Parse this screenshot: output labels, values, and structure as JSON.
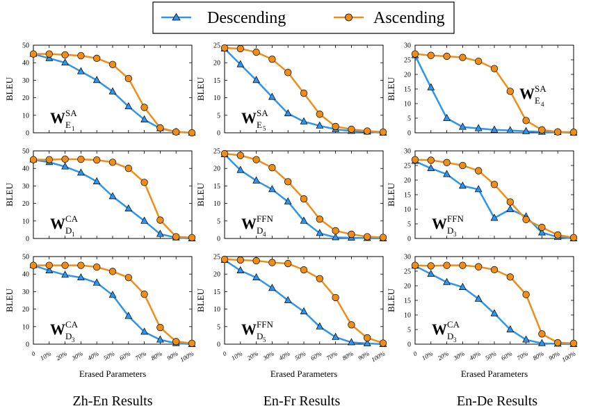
{
  "legend": {
    "descending_label": "Descending",
    "ascending_label": "Ascending",
    "descending_color": "#2b95ef",
    "ascending_color": "#f08d17"
  },
  "column_titles": [
    "Zh-En Results",
    "En-Fr Results",
    "En-De Results"
  ],
  "chart_data": [
    {
      "type": "line",
      "title": "Zh-En W_E1^SA",
      "panel_label": {
        "main": "W",
        "sup": "SA",
        "sub": "E",
        "subsub": "1"
      },
      "xlabel": "",
      "ylabel": "BLEU",
      "ylim": [
        0,
        50
      ],
      "yticks": [
        0,
        10,
        20,
        30,
        40,
        50
      ],
      "categories": [
        "0",
        "10%",
        "20%",
        "30%",
        "40%",
        "50%",
        "60%",
        "70%",
        "80%",
        "90%",
        "100%"
      ],
      "series": [
        {
          "name": "Descending",
          "values": [
            45,
            42.5,
            40,
            35,
            30,
            23.5,
            15,
            7.5,
            2.5,
            0.5,
            0
          ]
        },
        {
          "name": "Ascending",
          "values": [
            45,
            45,
            44.5,
            44,
            42.5,
            39,
            31,
            14.5,
            2.8,
            0.5,
            0
          ]
        }
      ]
    },
    {
      "type": "line",
      "title": "En-Fr W_E5^SA",
      "panel_label": {
        "main": "W",
        "sup": "SA",
        "sub": "E",
        "subsub": "5"
      },
      "xlabel": "",
      "ylabel": "BLEU",
      "ylim": [
        0,
        25
      ],
      "yticks": [
        0,
        5,
        10,
        15,
        20,
        25
      ],
      "categories": [
        "0",
        "10%",
        "20%",
        "30%",
        "40%",
        "50%",
        "60%",
        "70%",
        "80%",
        "90%",
        "100%"
      ],
      "series": [
        {
          "name": "Descending",
          "values": [
            24,
            19.5,
            15,
            10.2,
            5.5,
            3.2,
            2,
            1,
            0.5,
            0.3,
            0
          ]
        },
        {
          "name": "Ascending",
          "values": [
            24.2,
            24,
            23,
            21,
            17.2,
            11.3,
            5.3,
            1.8,
            1,
            0.5,
            0.2
          ]
        }
      ]
    },
    {
      "type": "line",
      "title": "En-De W_E4^SA",
      "panel_label": {
        "main": "W",
        "sup": "SA",
        "sub": "E",
        "subsub": "4"
      },
      "xlabel": "",
      "ylabel": "BLEU",
      "ylim": [
        0,
        30
      ],
      "yticks": [
        0,
        5,
        10,
        15,
        20,
        25,
        30
      ],
      "categories": [
        "0",
        "10%",
        "20%",
        "30%",
        "40%",
        "50%",
        "60%",
        "70%",
        "80%",
        "90%",
        "100%"
      ],
      "series": [
        {
          "name": "Descending",
          "values": [
            26.5,
            15.5,
            5,
            2,
            1.5,
            1,
            0.8,
            0.5,
            0.3,
            0.2,
            0
          ]
        },
        {
          "name": "Ascending",
          "values": [
            27,
            26.5,
            26.2,
            25.8,
            24.5,
            22,
            14.2,
            4.2,
            1,
            0.3,
            0.2
          ]
        }
      ]
    },
    {
      "type": "line",
      "title": "Zh-En W_D1^CA",
      "panel_label": {
        "main": "W",
        "sup": "CA",
        "sub": "D",
        "subsub": "1"
      },
      "xlabel": "",
      "ylabel": "BLEU",
      "ylim": [
        0,
        50
      ],
      "yticks": [
        0,
        10,
        20,
        30,
        40,
        50
      ],
      "categories": [
        "0",
        "10%",
        "20%",
        "30%",
        "40%",
        "50%",
        "60%",
        "70%",
        "80%",
        "90%",
        "100%"
      ],
      "series": [
        {
          "name": "Descending",
          "values": [
            45,
            43.5,
            41,
            37.5,
            32.5,
            24,
            17,
            10,
            2.5,
            0.5,
            0
          ]
        },
        {
          "name": "Ascending",
          "values": [
            45,
            45,
            45.3,
            45.2,
            44.8,
            43.5,
            40,
            32,
            10.5,
            1,
            0.5
          ]
        }
      ]
    },
    {
      "type": "line",
      "title": "En-Fr W_D4^FFN",
      "panel_label": {
        "main": "W",
        "sup": "FFN",
        "sub": "D",
        "subsub": "4"
      },
      "xlabel": "",
      "ylabel": "BLEU",
      "ylim": [
        0,
        25
      ],
      "yticks": [
        0,
        5,
        10,
        15,
        20,
        25
      ],
      "categories": [
        "0",
        "10%",
        "20%",
        "30%",
        "40%",
        "50%",
        "60%",
        "70%",
        "80%",
        "90%",
        "100%"
      ],
      "series": [
        {
          "name": "Descending",
          "values": [
            24,
            19.5,
            16.5,
            14,
            10.5,
            5,
            1.5,
            0.3,
            0.2,
            0.1,
            0
          ]
        },
        {
          "name": "Ascending",
          "values": [
            24.2,
            23.7,
            22.5,
            20.2,
            16.2,
            11.3,
            5.5,
            2.2,
            1.2,
            0.5,
            0.3
          ]
        }
      ]
    },
    {
      "type": "line",
      "title": "En-De W_D3^FFN",
      "panel_label": {
        "main": "W",
        "sup": "FFN",
        "sub": "D",
        "subsub": "3"
      },
      "xlabel": "",
      "ylabel": "BLEU",
      "ylim": [
        0,
        30
      ],
      "yticks": [
        0,
        5,
        10,
        15,
        20,
        25,
        30
      ],
      "categories": [
        "0",
        "10%",
        "20%",
        "30%",
        "40%",
        "50%",
        "60%",
        "70%",
        "80%",
        "90%",
        "100%"
      ],
      "series": [
        {
          "name": "Descending",
          "values": [
            26.5,
            24,
            22,
            18,
            16.8,
            7,
            10,
            7.5,
            2,
            0.5,
            0
          ]
        },
        {
          "name": "Ascending",
          "values": [
            27,
            26.8,
            26,
            25,
            23.2,
            18.5,
            12.5,
            6.5,
            3.8,
            1.2,
            0.3
          ]
        }
      ]
    },
    {
      "type": "line",
      "title": "Zh-En W_D3^CA",
      "panel_label": {
        "main": "W",
        "sup": "CA",
        "sub": "D",
        "subsub": "3"
      },
      "xlabel": "Erased Parameters",
      "ylabel": "BLEU",
      "ylim": [
        0,
        50
      ],
      "yticks": [
        0,
        10,
        20,
        30,
        40,
        50
      ],
      "categories": [
        "0",
        "10%",
        "20%",
        "30%",
        "40%",
        "50%",
        "60%",
        "70%",
        "80%",
        "90%",
        "100%"
      ],
      "series": [
        {
          "name": "Descending",
          "values": [
            45,
            42,
            39.5,
            38,
            35,
            28,
            16,
            7,
            2.5,
            0.5,
            0
          ]
        },
        {
          "name": "Ascending",
          "values": [
            45,
            45,
            45,
            45,
            44,
            41.5,
            38,
            28.5,
            9.5,
            1.5,
            0.5
          ]
        }
      ]
    },
    {
      "type": "line",
      "title": "En-Fr W_D5^FFN",
      "panel_label": {
        "main": "W",
        "sup": "FFN",
        "sub": "D",
        "subsub": "5"
      },
      "xlabel": "Erased Parameters",
      "ylabel": "BLEU",
      "ylim": [
        0,
        25
      ],
      "yticks": [
        0,
        5,
        10,
        15,
        20,
        25
      ],
      "categories": [
        "0",
        "10%",
        "20%",
        "30%",
        "40%",
        "50%",
        "60%",
        "70%",
        "80%",
        "90%",
        "100%"
      ],
      "series": [
        {
          "name": "Descending",
          "values": [
            24,
            21,
            19,
            16,
            12.5,
            9.3,
            5,
            2,
            0.5,
            0.2,
            0
          ]
        },
        {
          "name": "Ascending",
          "values": [
            24.2,
            24,
            23.8,
            23.3,
            23,
            21.2,
            18.7,
            13.3,
            5.5,
            1.8,
            0.3
          ]
        }
      ]
    },
    {
      "type": "line",
      "title": "En-De W_D3^CA",
      "panel_label": {
        "main": "W",
        "sup": "CA",
        "sub": "D",
        "subsub": "3"
      },
      "xlabel": "Erased Parameters",
      "ylabel": "BLEU",
      "ylim": [
        0,
        30
      ],
      "yticks": [
        0,
        5,
        10,
        15,
        20,
        25,
        30
      ],
      "categories": [
        "0",
        "10%",
        "20%",
        "30%",
        "40%",
        "50%",
        "60%",
        "70%",
        "80%",
        "90%",
        "100%"
      ],
      "series": [
        {
          "name": "Descending",
          "values": [
            26.8,
            24,
            21.2,
            19.5,
            15.5,
            10.5,
            5,
            1.5,
            0.3,
            0.1,
            0
          ]
        },
        {
          "name": "Ascending",
          "values": [
            27,
            26.8,
            27,
            27,
            26.5,
            25.5,
            23,
            17,
            3.5,
            0.5,
            0.3
          ]
        }
      ]
    }
  ]
}
